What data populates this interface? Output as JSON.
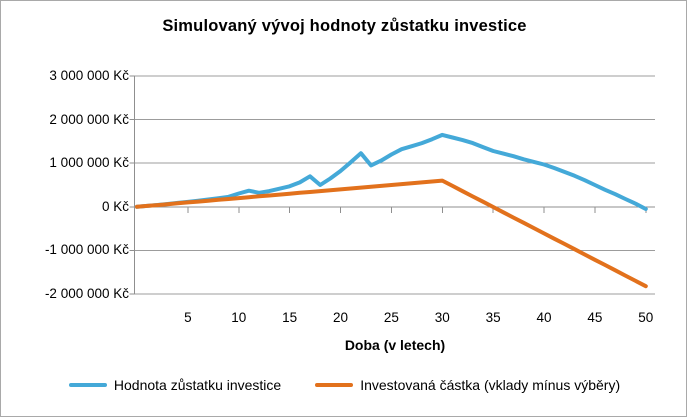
{
  "window": {
    "background": "#FFFFFF",
    "border_color": "#A9A9A9",
    "gridline_color": "#9C9C9C",
    "axis_color": "#8F8F8F",
    "text_color": "#000000"
  },
  "chart_data": {
    "type": "line",
    "title": "Simulovaný vývoj hodnoty zůstatku investice",
    "xlabel": "Doba (v letech)",
    "ylabel": "",
    "currency": "Kč",
    "grid": "horizontal",
    "legend_position": "bottom",
    "x_range": [
      0,
      50
    ],
    "y_range": [
      -2000000,
      3000000
    ],
    "x_ticks": [
      5,
      10,
      15,
      20,
      25,
      30,
      35,
      40,
      45,
      50
    ],
    "y_ticks": [
      {
        "value": 3000000,
        "label": "3 000 000 Kč"
      },
      {
        "value": 2000000,
        "label": "2 000 000 Kč"
      },
      {
        "value": 1000000,
        "label": "1 000 000 Kč"
      },
      {
        "value": 0,
        "label": "0 Kč"
      },
      {
        "value": -1000000,
        "label": "-1 000 000 Kč"
      },
      {
        "value": -2000000,
        "label": "-2 000 000 Kč"
      }
    ],
    "x": [
      0,
      1,
      2,
      3,
      4,
      5,
      6,
      7,
      8,
      9,
      10,
      11,
      12,
      13,
      14,
      15,
      16,
      17,
      18,
      19,
      20,
      21,
      22,
      23,
      24,
      25,
      26,
      27,
      28,
      29,
      30,
      31,
      32,
      33,
      34,
      35,
      36,
      37,
      38,
      39,
      40,
      41,
      42,
      43,
      44,
      45,
      46,
      47,
      48,
      49,
      50
    ],
    "series": [
      {
        "name": "Hodnota zůstatku investice",
        "color": "#44A9D8",
        "values": [
          0,
          20000,
          42000,
          65000,
          90000,
          112000,
          140000,
          168000,
          198000,
          230000,
          305000,
          370000,
          320000,
          360000,
          415000,
          470000,
          560000,
          700000,
          500000,
          650000,
          820000,
          1020000,
          1230000,
          950000,
          1060000,
          1200000,
          1320000,
          1390000,
          1460000,
          1550000,
          1650000,
          1590000,
          1530000,
          1460000,
          1370000,
          1280000,
          1220000,
          1160000,
          1090000,
          1030000,
          970000,
          890000,
          800000,
          710000,
          610000,
          500000,
          390000,
          290000,
          180000,
          70000,
          -50000
        ]
      },
      {
        "name": "Investovaná částka (vklady mínus výběry)",
        "color": "#E2711C",
        "values": [
          0,
          20000,
          40000,
          60000,
          80000,
          100000,
          120000,
          140000,
          160000,
          180000,
          200000,
          220000,
          240000,
          260000,
          280000,
          300000,
          320000,
          340000,
          360000,
          380000,
          400000,
          420000,
          440000,
          460000,
          480000,
          500000,
          520000,
          540000,
          560000,
          580000,
          600000,
          479000,
          358000,
          237000,
          116000,
          -5000,
          -126000,
          -247000,
          -368000,
          -489000,
          -610000,
          -731000,
          -852000,
          -973000,
          -1094000,
          -1215000,
          -1336000,
          -1457000,
          -1578000,
          -1699000,
          -1820000
        ]
      }
    ]
  }
}
